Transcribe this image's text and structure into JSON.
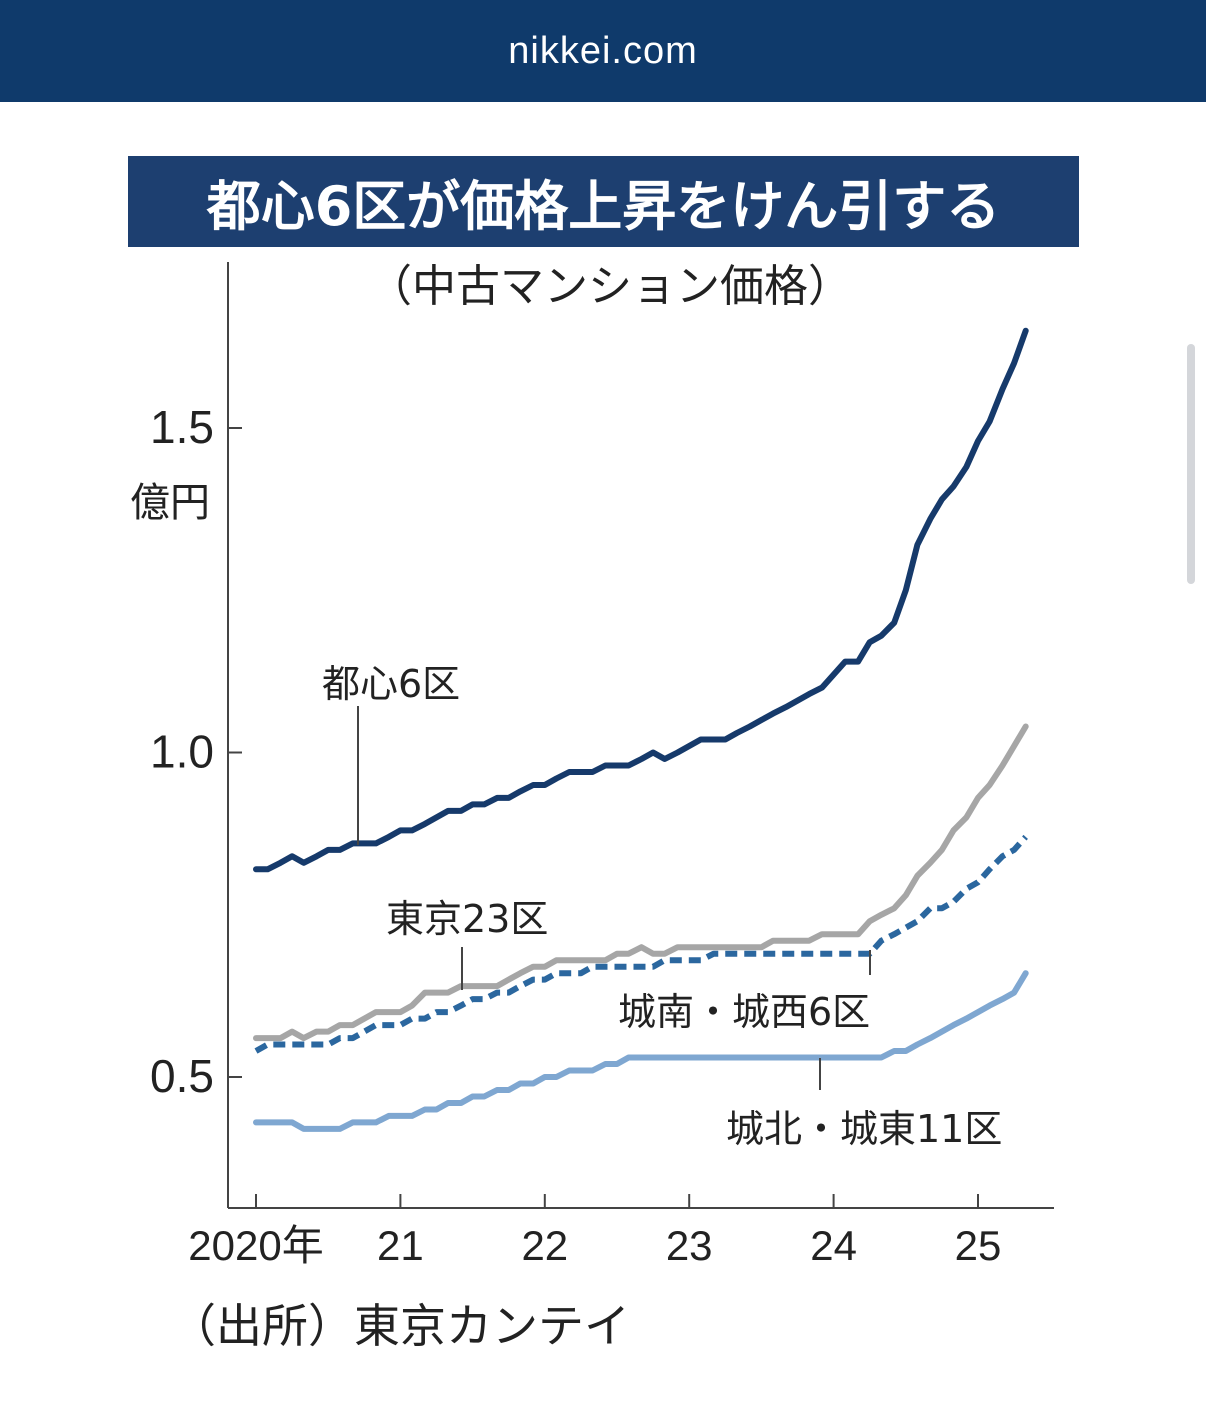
{
  "header": {
    "domain": "nikkei.com"
  },
  "colors": {
    "header_bg": "#0f3a6b",
    "title_bg": "#1d3f70",
    "central6": "#163a6b",
    "tokyo23": "#a6a6a6",
    "jonan_josai": "#2b679f",
    "johoku_joto": "#7fa7d1"
  },
  "chart_data": {
    "type": "line",
    "title": "都心6区が価格上昇をけん引する",
    "subtitle": "（中古マンション価格）",
    "ylabel": "億円",
    "ylim": [
      0.3,
      1.75
    ],
    "yticks": [
      0.5,
      1.0,
      1.5
    ],
    "ytick_labels": [
      "0.5",
      "1.0",
      "1.5"
    ],
    "xlim": [
      2019.95,
      2025.55
    ],
    "xticks": [
      2020,
      2021,
      2022,
      2023,
      2024,
      2025
    ],
    "xtick_labels": [
      "2020年",
      "21",
      "22",
      "23",
      "24",
      "25"
    ],
    "source": "（出所）東京カンテイ",
    "series": [
      {
        "name": "都心6区",
        "label": "都心6区",
        "style": "solid",
        "x": [
          2020.0,
          2020.08,
          2020.17,
          2020.25,
          2020.33,
          2020.42,
          2020.5,
          2020.58,
          2020.67,
          2020.75,
          2020.83,
          2020.92,
          2021.0,
          2021.08,
          2021.17,
          2021.25,
          2021.33,
          2021.42,
          2021.5,
          2021.58,
          2021.67,
          2021.75,
          2021.83,
          2021.92,
          2022.0,
          2022.08,
          2022.17,
          2022.25,
          2022.33,
          2022.42,
          2022.5,
          2022.58,
          2022.67,
          2022.75,
          2022.83,
          2022.92,
          2023.0,
          2023.08,
          2023.17,
          2023.25,
          2023.33,
          2023.42,
          2023.5,
          2023.58,
          2023.67,
          2023.75,
          2023.83,
          2023.92,
          2024.0,
          2024.08,
          2024.17,
          2024.25,
          2024.33,
          2024.42,
          2024.5,
          2024.58,
          2024.67,
          2024.75,
          2024.83,
          2024.92,
          2025.0,
          2025.08,
          2025.17,
          2025.25,
          2025.33
        ],
        "values": [
          0.82,
          0.82,
          0.83,
          0.84,
          0.83,
          0.84,
          0.85,
          0.85,
          0.86,
          0.86,
          0.86,
          0.87,
          0.88,
          0.88,
          0.89,
          0.9,
          0.91,
          0.91,
          0.92,
          0.92,
          0.93,
          0.93,
          0.94,
          0.95,
          0.95,
          0.96,
          0.97,
          0.97,
          0.97,
          0.98,
          0.98,
          0.98,
          0.99,
          1.0,
          0.99,
          1.0,
          1.01,
          1.02,
          1.02,
          1.02,
          1.03,
          1.04,
          1.05,
          1.06,
          1.07,
          1.08,
          1.09,
          1.1,
          1.12,
          1.14,
          1.14,
          1.17,
          1.18,
          1.2,
          1.25,
          1.32,
          1.36,
          1.39,
          1.41,
          1.44,
          1.48,
          1.51,
          1.56,
          1.6,
          1.65
        ]
      },
      {
        "name": "東京23区",
        "label": "東京23区",
        "style": "solid",
        "x": [
          2020.0,
          2020.08,
          2020.17,
          2020.25,
          2020.33,
          2020.42,
          2020.5,
          2020.58,
          2020.67,
          2020.75,
          2020.83,
          2020.92,
          2021.0,
          2021.08,
          2021.17,
          2021.25,
          2021.33,
          2021.42,
          2021.5,
          2021.58,
          2021.67,
          2021.75,
          2021.83,
          2021.92,
          2022.0,
          2022.08,
          2022.17,
          2022.25,
          2022.33,
          2022.42,
          2022.5,
          2022.58,
          2022.67,
          2022.75,
          2022.83,
          2022.92,
          2023.0,
          2023.08,
          2023.17,
          2023.25,
          2023.33,
          2023.42,
          2023.5,
          2023.58,
          2023.67,
          2023.75,
          2023.83,
          2023.92,
          2024.0,
          2024.08,
          2024.17,
          2024.25,
          2024.33,
          2024.42,
          2024.5,
          2024.58,
          2024.67,
          2024.75,
          2024.83,
          2024.92,
          2025.0,
          2025.08,
          2025.17,
          2025.25,
          2025.33
        ],
        "values": [
          0.56,
          0.56,
          0.56,
          0.57,
          0.56,
          0.57,
          0.57,
          0.58,
          0.58,
          0.59,
          0.6,
          0.6,
          0.6,
          0.61,
          0.63,
          0.63,
          0.63,
          0.64,
          0.64,
          0.64,
          0.64,
          0.65,
          0.66,
          0.67,
          0.67,
          0.68,
          0.68,
          0.68,
          0.68,
          0.68,
          0.69,
          0.69,
          0.7,
          0.69,
          0.69,
          0.7,
          0.7,
          0.7,
          0.7,
          0.7,
          0.7,
          0.7,
          0.7,
          0.71,
          0.71,
          0.71,
          0.71,
          0.72,
          0.72,
          0.72,
          0.72,
          0.74,
          0.75,
          0.76,
          0.78,
          0.81,
          0.83,
          0.85,
          0.88,
          0.9,
          0.93,
          0.95,
          0.98,
          1.01,
          1.04
        ]
      },
      {
        "name": "城南・城西6区",
        "label": "城南・城西6区",
        "style": "dashed",
        "x": [
          2020.0,
          2020.08,
          2020.17,
          2020.25,
          2020.33,
          2020.42,
          2020.5,
          2020.58,
          2020.67,
          2020.75,
          2020.83,
          2020.92,
          2021.0,
          2021.08,
          2021.17,
          2021.25,
          2021.33,
          2021.42,
          2021.5,
          2021.58,
          2021.67,
          2021.75,
          2021.83,
          2021.92,
          2022.0,
          2022.08,
          2022.17,
          2022.25,
          2022.33,
          2022.42,
          2022.5,
          2022.58,
          2022.67,
          2022.75,
          2022.83,
          2022.92,
          2023.0,
          2023.08,
          2023.17,
          2023.25,
          2023.33,
          2023.42,
          2023.5,
          2023.58,
          2023.67,
          2023.75,
          2023.83,
          2023.92,
          2024.0,
          2024.08,
          2024.17,
          2024.25,
          2024.33,
          2024.42,
          2024.5,
          2024.58,
          2024.67,
          2024.75,
          2024.83,
          2024.92,
          2025.0,
          2025.08,
          2025.17,
          2025.25,
          2025.33
        ],
        "values": [
          0.54,
          0.55,
          0.55,
          0.55,
          0.55,
          0.55,
          0.55,
          0.56,
          0.56,
          0.57,
          0.58,
          0.58,
          0.58,
          0.59,
          0.59,
          0.6,
          0.6,
          0.61,
          0.62,
          0.62,
          0.63,
          0.63,
          0.64,
          0.65,
          0.65,
          0.66,
          0.66,
          0.66,
          0.67,
          0.67,
          0.67,
          0.67,
          0.67,
          0.67,
          0.68,
          0.68,
          0.68,
          0.68,
          0.69,
          0.69,
          0.69,
          0.69,
          0.69,
          0.69,
          0.69,
          0.69,
          0.69,
          0.69,
          0.69,
          0.69,
          0.69,
          0.69,
          0.71,
          0.72,
          0.73,
          0.74,
          0.76,
          0.76,
          0.77,
          0.79,
          0.8,
          0.82,
          0.84,
          0.85,
          0.87
        ]
      },
      {
        "name": "城北・城東11区",
        "label": "城北・城東11区",
        "style": "solid",
        "x": [
          2020.0,
          2020.08,
          2020.17,
          2020.25,
          2020.33,
          2020.42,
          2020.5,
          2020.58,
          2020.67,
          2020.75,
          2020.83,
          2020.92,
          2021.0,
          2021.08,
          2021.17,
          2021.25,
          2021.33,
          2021.42,
          2021.5,
          2021.58,
          2021.67,
          2021.75,
          2021.83,
          2021.92,
          2022.0,
          2022.08,
          2022.17,
          2022.25,
          2022.33,
          2022.42,
          2022.5,
          2022.58,
          2022.67,
          2022.75,
          2022.83,
          2022.92,
          2023.0,
          2023.08,
          2023.17,
          2023.25,
          2023.33,
          2023.42,
          2023.5,
          2023.58,
          2023.67,
          2023.75,
          2023.83,
          2023.92,
          2024.0,
          2024.08,
          2024.17,
          2024.25,
          2024.33,
          2024.42,
          2024.5,
          2024.58,
          2024.67,
          2024.75,
          2024.83,
          2024.92,
          2025.0,
          2025.08,
          2025.17,
          2025.25,
          2025.33
        ],
        "values": [
          0.43,
          0.43,
          0.43,
          0.43,
          0.42,
          0.42,
          0.42,
          0.42,
          0.43,
          0.43,
          0.43,
          0.44,
          0.44,
          0.44,
          0.45,
          0.45,
          0.46,
          0.46,
          0.47,
          0.47,
          0.48,
          0.48,
          0.49,
          0.49,
          0.5,
          0.5,
          0.51,
          0.51,
          0.51,
          0.52,
          0.52,
          0.53,
          0.53,
          0.53,
          0.53,
          0.53,
          0.53,
          0.53,
          0.53,
          0.53,
          0.53,
          0.53,
          0.53,
          0.53,
          0.53,
          0.53,
          0.53,
          0.53,
          0.53,
          0.53,
          0.53,
          0.53,
          0.53,
          0.54,
          0.54,
          0.55,
          0.56,
          0.57,
          0.58,
          0.59,
          0.6,
          0.61,
          0.62,
          0.63,
          0.66
        ]
      }
    ],
    "annotations": [
      {
        "text": "都心6区",
        "series": "都心6区"
      },
      {
        "text": "東京23区",
        "series": "東京23区"
      },
      {
        "text": "城南・城西6区",
        "series": "城南・城西6区"
      },
      {
        "text": "城北・城東11区",
        "series": "城北・城東11区"
      }
    ]
  }
}
